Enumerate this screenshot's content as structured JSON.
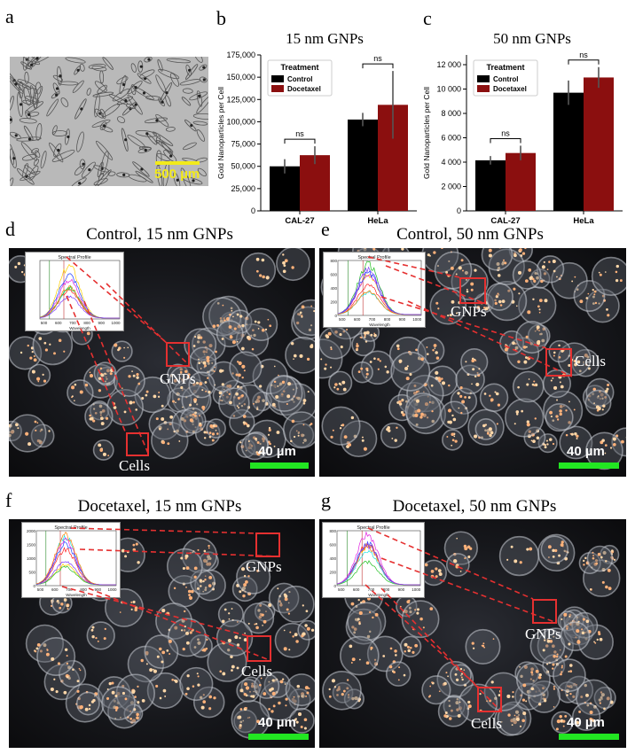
{
  "panel_labels": {
    "a": "a",
    "b": "b",
    "c": "c",
    "d": "d",
    "e": "e",
    "f": "f",
    "g": "g"
  },
  "panel_a": {
    "scale_label": "500 µm",
    "scale_color": "#f2ea1a"
  },
  "chart_data": [
    {
      "type": "bar",
      "title": "15 nm GNPs",
      "ylabel": "Gold Nanoparticles per Cell",
      "categories": [
        "CAL-27",
        "HeLa"
      ],
      "legend_title": "Treatment",
      "legend_position": "top-left",
      "ylim": [
        0,
        175000
      ],
      "yticks": [
        0,
        25000,
        50000,
        75000,
        100000,
        125000,
        150000,
        175000
      ],
      "ytick_labels": [
        "0",
        "25,000",
        "50,000",
        "75,000",
        "100,000",
        "125,000",
        "150,000",
        "175,000"
      ],
      "series": [
        {
          "name": "Control",
          "color": "#000000",
          "values": [
            50000,
            102500
          ],
          "err": [
            8000,
            7500
          ]
        },
        {
          "name": "Docetaxel",
          "color": "#8b0f0f",
          "values": [
            62500,
            119000
          ],
          "err": [
            10000,
            38000
          ]
        }
      ],
      "annotations": [
        "ns",
        "ns"
      ]
    },
    {
      "type": "bar",
      "title": "50 nm GNPs",
      "ylabel": "Gold Nanoparticles per Cell",
      "categories": [
        "CAL-27",
        "HeLa"
      ],
      "legend_title": "Treatment",
      "legend_position": "top-left",
      "ylim": [
        0,
        12800
      ],
      "yticks": [
        0,
        2000,
        4000,
        6000,
        8000,
        10000,
        12000
      ],
      "ytick_labels": [
        "0",
        "2 000",
        "4 000",
        "6 000",
        "8 000",
        "10 000",
        "12 000"
      ],
      "series": [
        {
          "name": "Control",
          "color": "#000000",
          "values": [
            4150,
            9700
          ],
          "err": [
            350,
            1000
          ]
        },
        {
          "name": "Docetaxel",
          "color": "#8b0f0f",
          "values": [
            4750,
            10950
          ],
          "err": [
            600,
            850
          ]
        }
      ],
      "annotations": [
        "ns",
        "ns"
      ]
    }
  ],
  "micrographs": [
    {
      "key": "d",
      "title": "Control, 15 nm GNPs",
      "gnps_label": "GNPs",
      "cells_label": "Cells",
      "scale_label": "40 µm",
      "inset": {
        "title": "Spectral Profile",
        "xlabel": "Wavelength",
        "ylabel": "Value",
        "xticks": [
          "500",
          "600",
          "700",
          "800",
          "900",
          "1000"
        ]
      }
    },
    {
      "key": "e",
      "title": "Control, 50 nm GNPs",
      "gnps_label": "GNPs",
      "cells_label": "Cells",
      "scale_label": "40 µm",
      "inset": {
        "title": "Spectral Profile",
        "xlabel": "Wavelength",
        "ylabel": "Value",
        "xticks": [
          "500",
          "600",
          "700",
          "800",
          "900",
          "1000"
        ],
        "yticks": [
          "0",
          "200",
          "400",
          "600",
          "800"
        ]
      }
    },
    {
      "key": "f",
      "title": "Docetaxel, 15 nm GNPs",
      "gnps_label": "GNPs",
      "cells_label": "Cells",
      "scale_label": "40 µm",
      "inset": {
        "title": "Spectral Profile",
        "xlabel": "Wavelength",
        "ylabel": "Value",
        "xticks": [
          "500",
          "600",
          "700",
          "800",
          "900",
          "1000"
        ],
        "yticks": [
          "0",
          "500",
          "1000",
          "1500",
          "2000"
        ]
      }
    },
    {
      "key": "g",
      "title": "Docetaxel, 50 nm GNPs",
      "gnps_label": "GNPs",
      "cells_label": "Cells",
      "scale_label": "40 µm",
      "inset": {
        "title": "Spectral Profile",
        "xlabel": "Wavelength",
        "ylabel": "Value",
        "xticks": [
          "500",
          "600",
          "700",
          "800",
          "900",
          "1000"
        ],
        "yticks": [
          "0",
          "200",
          "400",
          "600",
          "800"
        ]
      }
    }
  ],
  "colors": {
    "box": "#e53030",
    "scalebar": "#22e622",
    "control": "#000000",
    "docetaxel": "#8b0f0f"
  }
}
